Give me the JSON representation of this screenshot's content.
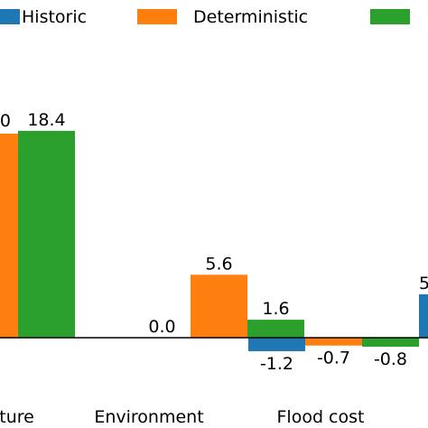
{
  "chart_data": {
    "type": "bar",
    "categories": [
      "lture",
      "Environment",
      "Flood cost"
    ],
    "series": [
      {
        "name": "Historic",
        "color": "#1f77b4",
        "values": [
          null,
          0.0,
          -1.2
        ]
      },
      {
        "name": "Deterministic",
        "color": "#ff7f0e",
        "values": [
          null,
          5.6,
          -0.7
        ]
      },
      {
        "name": "",
        "color": "#2ca02c",
        "values": [
          18.4,
          1.6,
          -0.8
        ]
      }
    ],
    "partial_labels": {
      "left_edge_value": "0",
      "right_edge_value": "5"
    },
    "legend_position": "top",
    "grid": false
  }
}
